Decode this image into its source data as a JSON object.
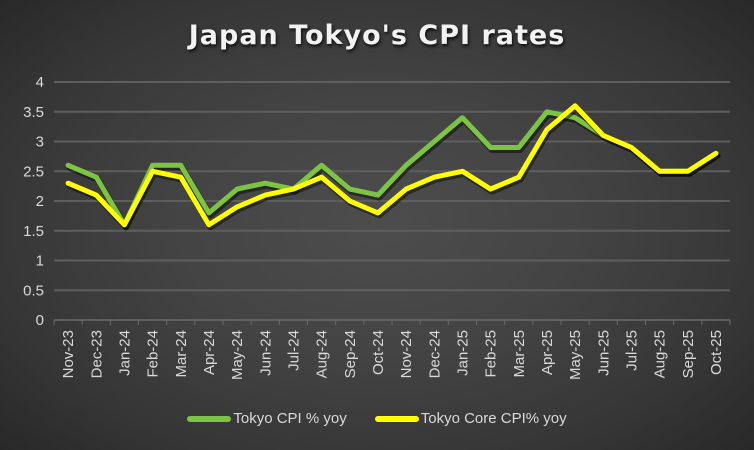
{
  "chart_data": {
    "type": "line",
    "title": "Japan Tokyo's CPI rates",
    "xlabel": "",
    "ylabel": "",
    "ylim": [
      0,
      4
    ],
    "yticks": [
      0,
      0.5,
      1,
      1.5,
      2,
      2.5,
      3,
      3.5,
      4
    ],
    "ytick_labels": [
      "0",
      "0.5",
      "1",
      "1.5",
      "2",
      "2.5",
      "3",
      "3.5",
      "4"
    ],
    "grid": true,
    "legend_position": "bottom",
    "categories": [
      "Nov-23",
      "Dec-23",
      "Jan-24",
      "Feb-24",
      "Mar-24",
      "Apr-24",
      "May-24",
      "Jun-24",
      "Jul-24",
      "Aug-24",
      "Sep-24",
      "Oct-24",
      "Nov-24",
      "Dec-24",
      "Jan-25",
      "Feb-25",
      "Mar-25",
      "Apr-25",
      "May-25",
      "Jun-25",
      "Jul-25",
      "Aug-25",
      "Sep-25",
      "Oct-25"
    ],
    "series": [
      {
        "name": "Tokyo CPI % yoy",
        "color": "#7ec443",
        "values": [
          2.6,
          2.4,
          1.6,
          2.6,
          2.6,
          1.8,
          2.2,
          2.3,
          2.2,
          2.6,
          2.2,
          2.1,
          2.6,
          3.0,
          3.4,
          2.9,
          2.9,
          3.5,
          3.4,
          3.1,
          2.9,
          2.5,
          2.5,
          2.8
        ]
      },
      {
        "name": "Tokyo Core CPI% yoy",
        "color": "#ffff00",
        "values": [
          2.3,
          2.1,
          1.6,
          2.5,
          2.4,
          1.6,
          1.9,
          2.1,
          2.2,
          2.4,
          2.0,
          1.8,
          2.2,
          2.4,
          2.5,
          2.2,
          2.4,
          3.2,
          3.6,
          3.1,
          2.9,
          2.5,
          2.5,
          2.8
        ]
      }
    ]
  },
  "colors": {
    "background_center": "#4d4d4d",
    "background_edge": "#272727",
    "gridline": "#5e5e5e",
    "text": "#d9d9d9"
  }
}
